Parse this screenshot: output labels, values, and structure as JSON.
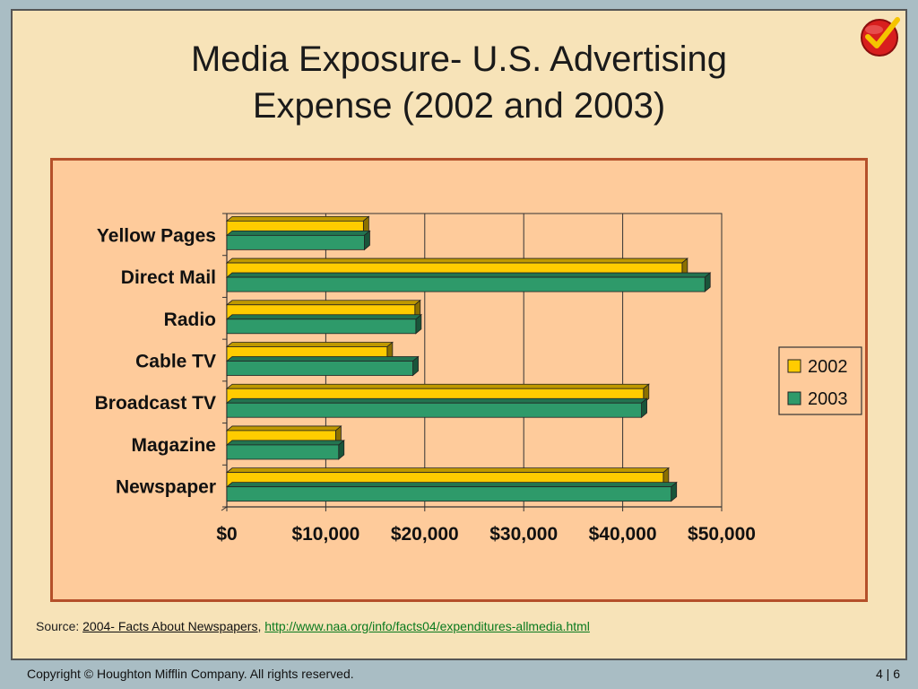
{
  "title_line1": "Media Exposure- U.S. Advertising",
  "title_line2": "Expense (2002 and 2003)",
  "icon": "checkmark-icon",
  "chart_data": {
    "type": "bar",
    "orientation": "horizontal",
    "categories": [
      "Yellow Pages",
      "Direct Mail",
      "Radio",
      "Cable TV",
      "Broadcast TV",
      "Magazine",
      "Newspaper"
    ],
    "series": [
      {
        "name": "2002",
        "color": "#ffcc00",
        "values": [
          13800,
          46000,
          19000,
          16200,
          42100,
          11000,
          44100
        ]
      },
      {
        "name": "2003",
        "color": "#2e9a6a",
        "values": [
          13900,
          48300,
          19100,
          18800,
          41900,
          11300,
          44900
        ]
      }
    ],
    "xlim": [
      0,
      50000
    ],
    "xticks": [
      "$0",
      "$10,000",
      "$20,000",
      "$30,000",
      "$40,000",
      "$50,000"
    ],
    "grid": true,
    "legend": "right"
  },
  "source": {
    "prefix": "Source: ",
    "ref_title": "2004- Facts About Newspapers",
    "sep": ", ",
    "url": "http://www.naa.org/info/facts04/expenditures-allmedia.html"
  },
  "footer": {
    "copyright": "Copyright © Houghton Mifflin Company. All rights reserved.",
    "page": "4 | 6"
  }
}
